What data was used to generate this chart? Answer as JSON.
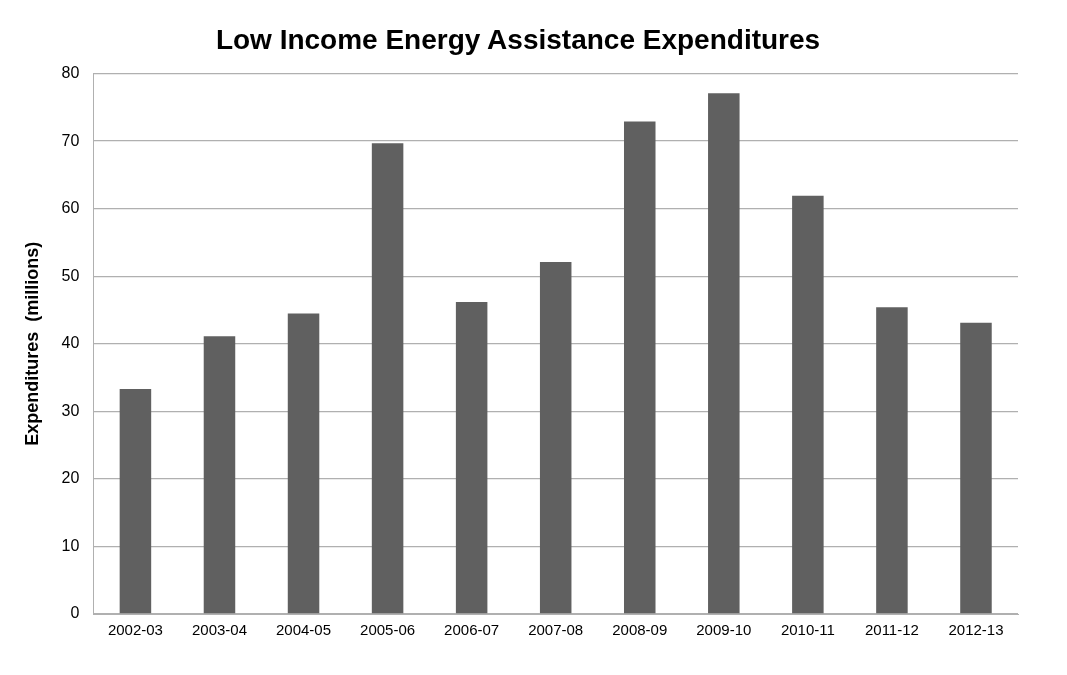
{
  "chart_data": {
    "type": "bar",
    "title": "Low Income Energy Assistance Expenditures",
    "ylabel": "Expenditures  (millions)",
    "categories": [
      "2002-03",
      "2003-04",
      "2004-05",
      "2005-06",
      "2006-07",
      "2007-08",
      "2008-09",
      "2009-10",
      "2010-11",
      "2011-12",
      "2012-13"
    ],
    "values": [
      33.3,
      41.1,
      44.5,
      69.7,
      46.2,
      52.1,
      72.9,
      77.1,
      61.9,
      45.4,
      43.1
    ],
    "color": "#606060",
    "ylim": [
      0,
      80
    ],
    "yticks": [
      0,
      10,
      20,
      30,
      40,
      50,
      60,
      70,
      80
    ],
    "grid": "y",
    "legend": false
  }
}
